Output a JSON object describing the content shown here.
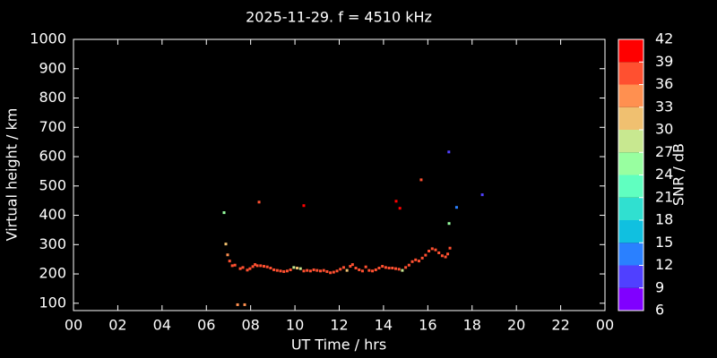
{
  "chart_data": {
    "type": "scatter",
    "title": "2025-11-29. f = 4510 kHz",
    "x_label": "UT Time / hrs",
    "y_label": "Virtual height / km",
    "xlim": [
      0,
      24
    ],
    "xticks": [
      {
        "value": 0,
        "label": "00"
      },
      {
        "value": 2,
        "label": "02"
      },
      {
        "value": 4,
        "label": "04"
      },
      {
        "value": 6,
        "label": "06"
      },
      {
        "value": 8,
        "label": "08"
      },
      10,
      12,
      14,
      16,
      18,
      20,
      22,
      {
        "value": 24,
        "label": "00"
      }
    ],
    "ylim": [
      75,
      1000
    ],
    "yticks": [
      100,
      200,
      300,
      400,
      500,
      600,
      700,
      800,
      900,
      1000
    ],
    "colorbar": {
      "label": "SNR / dB",
      "lim": [
        6,
        42
      ],
      "ticks": [
        6,
        9,
        12,
        15,
        18,
        21,
        24,
        27,
        30,
        33,
        36,
        39,
        42
      ],
      "colors": [
        "#8000ff",
        "#5040ff",
        "#2a80ff",
        "#10c0e0",
        "#30e0d0",
        "#60ffc0",
        "#98ffa0",
        "#c8e890",
        "#f0c070",
        "#ff9050",
        "#ff5030",
        "#ff0000"
      ]
    },
    "x": [
      6.8,
      6.88,
      6.96,
      7.05,
      7.17,
      7.29,
      7.41,
      7.53,
      7.65,
      7.73,
      7.85,
      7.97,
      8.1,
      8.2,
      8.3,
      8.45,
      8.6,
      8.75,
      8.9,
      9.05,
      9.2,
      9.35,
      9.5,
      9.65,
      9.8,
      9.95,
      10.1,
      10.25,
      10.4,
      10.55,
      10.7,
      10.85,
      11.0,
      11.15,
      11.3,
      11.45,
      11.6,
      11.75,
      11.9,
      12.05,
      12.2,
      12.35,
      12.5,
      12.6,
      12.75,
      12.9,
      13.05,
      13.2,
      13.35,
      13.5,
      13.65,
      13.8,
      13.95,
      14.1,
      14.25,
      14.4,
      14.55,
      14.7,
      14.85,
      15.0,
      15.15,
      15.3,
      15.45,
      15.6,
      15.75,
      15.9,
      16.05,
      16.2,
      16.35,
      16.5,
      16.65,
      16.8,
      16.9,
      17.0,
      8.38,
      10.4,
      14.57,
      14.74,
      15.7,
      16.95,
      16.96,
      17.3,
      18.46
    ],
    "values": [
      409,
      302,
      265,
      244,
      228,
      230,
      95,
      218,
      222,
      95,
      213,
      218,
      225,
      232,
      228,
      228,
      226,
      224,
      220,
      214,
      212,
      210,
      208,
      210,
      214,
      222,
      220,
      218,
      210,
      212,
      210,
      214,
      212,
      210,
      212,
      208,
      204,
      206,
      210,
      216,
      222,
      212,
      226,
      232,
      220,
      214,
      210,
      224,
      212,
      210,
      214,
      220,
      226,
      222,
      220,
      220,
      218,
      216,
      212,
      222,
      230,
      242,
      248,
      244,
      254,
      264,
      278,
      286,
      282,
      272,
      262,
      258,
      268,
      288,
      445,
      433,
      448,
      424,
      521,
      616,
      372,
      427,
      470
    ],
    "snr": [
      25,
      30,
      34,
      36,
      36,
      37,
      35,
      37,
      37,
      35,
      37,
      38,
      37,
      37,
      36,
      37,
      37,
      37,
      37,
      37,
      37,
      37,
      37,
      36,
      37,
      27,
      30,
      28,
      37,
      37,
      37,
      36,
      37,
      37,
      37,
      37,
      37,
      37,
      36,
      37,
      37,
      30,
      37,
      36,
      37,
      37,
      37,
      36,
      37,
      37,
      37,
      37,
      36,
      37,
      37,
      37,
      37,
      37,
      28,
      37,
      37,
      37,
      36,
      37,
      37,
      37,
      37,
      37,
      36,
      37,
      37,
      37,
      36,
      38,
      38,
      40,
      40,
      40,
      36,
      10,
      24,
      13,
      11
    ]
  }
}
